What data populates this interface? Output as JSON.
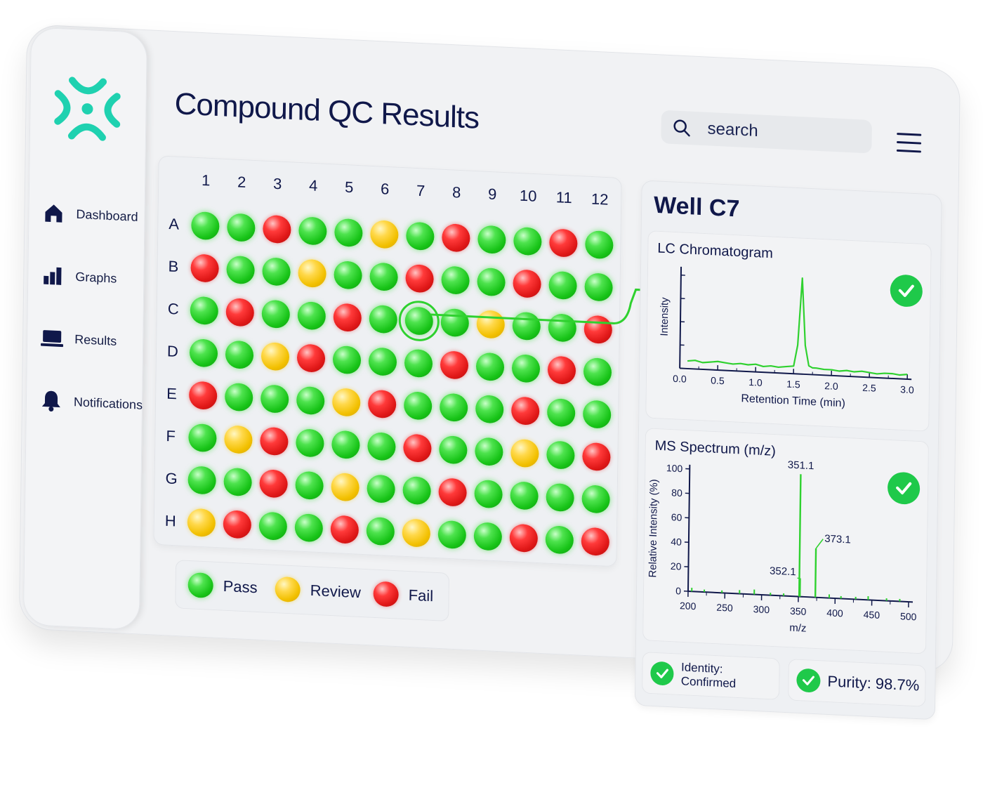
{
  "app": {
    "title": "Compound QC Results"
  },
  "search": {
    "placeholder": "search"
  },
  "sidebar": {
    "items": [
      {
        "label": "Dashboard",
        "icon": "home-icon"
      },
      {
        "label": "Graphs",
        "icon": "bar-chart-icon"
      },
      {
        "label": "Results",
        "icon": "laptop-icon"
      },
      {
        "label": "Notifications",
        "icon": "bell-icon"
      }
    ]
  },
  "plate": {
    "columns": [
      "1",
      "2",
      "3",
      "4",
      "5",
      "6",
      "7",
      "8",
      "9",
      "10",
      "11",
      "12"
    ],
    "rows": [
      "A",
      "B",
      "C",
      "D",
      "E",
      "F",
      "G",
      "H"
    ],
    "wells": [
      [
        "pass",
        "pass",
        "fail",
        "pass",
        "pass",
        "review",
        "pass",
        "fail",
        "pass",
        "pass",
        "fail",
        "pass"
      ],
      [
        "fail",
        "pass",
        "pass",
        "review",
        "pass",
        "pass",
        "fail",
        "pass",
        "pass",
        "fail",
        "pass",
        "pass"
      ],
      [
        "pass",
        "fail",
        "pass",
        "pass",
        "fail",
        "pass",
        "pass",
        "pass",
        "review",
        "pass",
        "pass",
        "fail"
      ],
      [
        "pass",
        "pass",
        "review",
        "fail",
        "pass",
        "pass",
        "pass",
        "fail",
        "pass",
        "pass",
        "fail",
        "pass"
      ],
      [
        "fail",
        "pass",
        "pass",
        "pass",
        "review",
        "fail",
        "pass",
        "pass",
        "pass",
        "fail",
        "pass",
        "pass"
      ],
      [
        "pass",
        "review",
        "fail",
        "pass",
        "pass",
        "pass",
        "fail",
        "pass",
        "pass",
        "review",
        "pass",
        "fail"
      ],
      [
        "pass",
        "pass",
        "fail",
        "pass",
        "review",
        "pass",
        "pass",
        "fail",
        "pass",
        "pass",
        "pass",
        "pass"
      ],
      [
        "review",
        "fail",
        "pass",
        "pass",
        "fail",
        "pass",
        "review",
        "pass",
        "pass",
        "fail",
        "pass",
        "fail"
      ]
    ],
    "selected_well": "C7"
  },
  "legend": {
    "pass": "Pass",
    "review": "Review",
    "fail": "Fail"
  },
  "colors": {
    "pass": "#22c922",
    "review": "#f2c400",
    "fail": "#e01818",
    "accent": "#2fd12f",
    "logo": "#1fd1b0",
    "text": "#10184a"
  },
  "detail": {
    "well_title": "Well C7",
    "lc_title": "LC Chromatogram",
    "ms_title": "MS Spectrum (m/z)",
    "identity": "Identity: Confirmed",
    "purity": "Purity: 98.7%"
  },
  "chart_data": [
    {
      "type": "line",
      "title": "LC Chromatogram",
      "xlabel": "Retention Time (min)",
      "ylabel": "Intensity",
      "xlim": [
        0,
        3.0
      ],
      "xticks": [
        "0.0",
        "0.5",
        "1.0",
        "1.5",
        "2.0",
        "2.5",
        "3.0"
      ],
      "series": [
        {
          "x": [
            0.1,
            0.2,
            0.3,
            0.4,
            0.5,
            0.6,
            0.7,
            0.8,
            0.9,
            1.0,
            1.1,
            1.2,
            1.3,
            1.4,
            1.5,
            1.55,
            1.6,
            1.65,
            1.7,
            1.75,
            1.8,
            1.9,
            2.0,
            2.1,
            2.2,
            2.3,
            2.4,
            2.5,
            2.6,
            2.7,
            2.8,
            2.9,
            3.0
          ],
          "y": [
            0.08,
            0.09,
            0.07,
            0.08,
            0.09,
            0.08,
            0.07,
            0.08,
            0.07,
            0.08,
            0.06,
            0.07,
            0.06,
            0.07,
            0.08,
            0.3,
            1.0,
            0.3,
            0.09,
            0.07,
            0.07,
            0.06,
            0.06,
            0.05,
            0.06,
            0.05,
            0.06,
            0.05,
            0.04,
            0.05,
            0.05,
            0.04,
            0.05
          ]
        }
      ],
      "peak_rt": 1.6
    },
    {
      "type": "bar",
      "title": "MS Spectrum (m/z)",
      "xlabel": "m/z",
      "ylabel": "Relative Intensity (%)",
      "xlim": [
        200,
        500
      ],
      "ylim": [
        0,
        100
      ],
      "xticks": [
        "200",
        "250",
        "300",
        "350",
        "400",
        "450",
        "500"
      ],
      "yticks": [
        "0",
        "20",
        "40",
        "60",
        "80",
        "100"
      ],
      "peaks": [
        {
          "mz": 351.1,
          "intensity": 100,
          "label": "351.1"
        },
        {
          "mz": 352.1,
          "intensity": 15,
          "label": "352.1"
        },
        {
          "mz": 373.1,
          "intensity": 40,
          "label": "373.1"
        }
      ],
      "noise": [
        {
          "mz": 205,
          "intensity": 3
        },
        {
          "mz": 222,
          "intensity": 2
        },
        {
          "mz": 246,
          "intensity": 2
        },
        {
          "mz": 270,
          "intensity": 3
        },
        {
          "mz": 290,
          "intensity": 4
        },
        {
          "mz": 312,
          "intensity": 2
        },
        {
          "mz": 330,
          "intensity": 2
        },
        {
          "mz": 392,
          "intensity": 3
        },
        {
          "mz": 408,
          "intensity": 2
        },
        {
          "mz": 428,
          "intensity": 2
        },
        {
          "mz": 445,
          "intensity": 3
        },
        {
          "mz": 470,
          "intensity": 2
        },
        {
          "mz": 488,
          "intensity": 2
        }
      ]
    }
  ]
}
